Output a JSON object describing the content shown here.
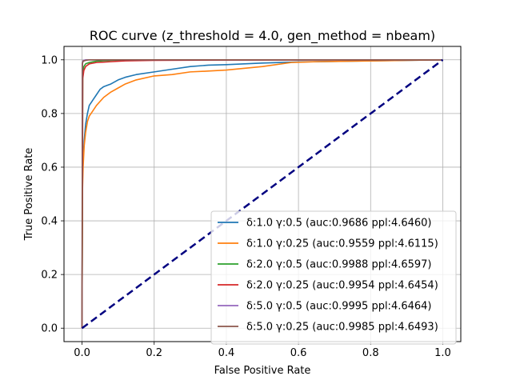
{
  "chart_data": {
    "type": "line",
    "title": "ROC curve (z_threshold = 4.0, gen_method = nbeam)",
    "xlabel": "False Positive Rate",
    "ylabel": "True Positive Rate",
    "xlim": [
      -0.05,
      1.05
    ],
    "ylim": [
      -0.05,
      1.05
    ],
    "xticks": [
      "0.0",
      "0.2",
      "0.4",
      "0.6",
      "0.8",
      "1.0"
    ],
    "yticks": [
      "0.0",
      "0.2",
      "0.4",
      "0.6",
      "0.8",
      "1.0"
    ],
    "grid": true,
    "legend_position": "lower-right",
    "series": [
      {
        "name": "δ:1.0 γ:0.5 (auc:0.9686 ppl:4.6460)",
        "color": "#1f77b4",
        "x": [
          0,
          0.001,
          0.003,
          0.006,
          0.01,
          0.015,
          0.02,
          0.03,
          0.04,
          0.05,
          0.06,
          0.07,
          0.08,
          0.1,
          0.12,
          0.15,
          0.2,
          0.25,
          0.3,
          0.35,
          0.4,
          0.5,
          0.6,
          0.7,
          0.8,
          0.9,
          1.0
        ],
        "y": [
          0,
          0.55,
          0.63,
          0.7,
          0.76,
          0.8,
          0.83,
          0.85,
          0.87,
          0.89,
          0.9,
          0.905,
          0.91,
          0.925,
          0.935,
          0.945,
          0.955,
          0.965,
          0.975,
          0.98,
          0.982,
          0.988,
          0.992,
          0.994,
          0.996,
          0.998,
          1.0
        ]
      },
      {
        "name": "δ:1.0 γ:0.25 (auc:0.9559 ppl:4.6115)",
        "color": "#ff7f0e",
        "x": [
          0,
          0.001,
          0.003,
          0.006,
          0.01,
          0.015,
          0.02,
          0.03,
          0.04,
          0.05,
          0.06,
          0.07,
          0.08,
          0.1,
          0.12,
          0.15,
          0.2,
          0.25,
          0.3,
          0.35,
          0.4,
          0.5,
          0.58,
          0.65,
          0.75,
          0.85,
          1.0
        ],
        "y": [
          0,
          0.5,
          0.6,
          0.68,
          0.73,
          0.77,
          0.79,
          0.81,
          0.83,
          0.845,
          0.86,
          0.87,
          0.88,
          0.895,
          0.91,
          0.925,
          0.94,
          0.945,
          0.955,
          0.958,
          0.962,
          0.975,
          0.99,
          0.993,
          0.995,
          0.997,
          1.0
        ]
      },
      {
        "name": "δ:2.0 γ:0.5 (auc:0.9988 ppl:4.6597)",
        "color": "#2ca02c",
        "x": [
          0,
          0.002,
          0.005,
          0.01,
          0.02,
          0.04,
          0.08,
          0.15,
          1.0
        ],
        "y": [
          0,
          0.95,
          0.975,
          0.985,
          0.99,
          0.995,
          0.998,
          1.0,
          1.0
        ]
      },
      {
        "name": "δ:2.0 γ:0.25 (auc:0.9954 ppl:4.6454)",
        "color": "#d62728",
        "x": [
          0,
          0.002,
          0.005,
          0.01,
          0.02,
          0.04,
          0.08,
          0.12,
          0.2,
          0.4,
          1.0
        ],
        "y": [
          0,
          0.93,
          0.96,
          0.975,
          0.985,
          0.99,
          0.993,
          0.996,
          0.998,
          0.999,
          1.0
        ]
      },
      {
        "name": "δ:5.0 γ:0.5 (auc:0.9995 ppl:4.6464)",
        "color": "#9467bd",
        "x": [
          0,
          0.001,
          0.003,
          0.01,
          1.0
        ],
        "y": [
          0,
          0.99,
          0.997,
          1.0,
          1.0
        ]
      },
      {
        "name": "δ:5.0 γ:0.25 (auc:0.9985 ppl:4.6493)",
        "color": "#8c564b",
        "x": [
          0,
          0.001,
          0.003,
          0.01,
          0.02,
          1.0
        ],
        "y": [
          0,
          0.985,
          0.995,
          0.998,
          1.0,
          1.0
        ]
      }
    ],
    "reference_line": {
      "color": "#000080",
      "style": "dashed",
      "x": [
        0,
        1
      ],
      "y": [
        0,
        1
      ]
    }
  }
}
